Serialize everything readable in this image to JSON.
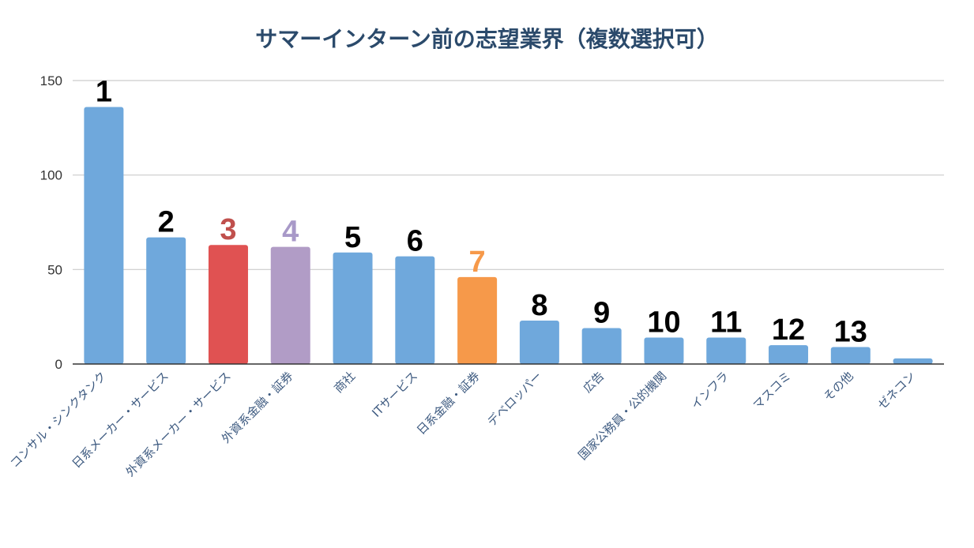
{
  "chart_data": {
    "type": "bar",
    "title": "サマーインターン前の志望業界（複数選択可）",
    "xlabel": "",
    "ylabel": "",
    "ylim": [
      0,
      150
    ],
    "yticks": [
      0,
      50,
      100,
      150
    ],
    "grid": true,
    "categories": [
      "コンサル・シンクタンク",
      "日系メーカー・サービス",
      "外資系メーカー・サービス",
      "外資系金融・証券",
      "商社",
      "ITサービス",
      "日系金融・証券",
      "デベロッパー",
      "広告",
      "国家公務員・公的機関",
      "インフラ",
      "マスコミ",
      "その他",
      "ゼネコン"
    ],
    "values": [
      136,
      67,
      63,
      62,
      59,
      57,
      46,
      23,
      19,
      14,
      14,
      10,
      9,
      3
    ],
    "bar_colors": [
      "#6fa8dc",
      "#6fa8dc",
      "#e05252",
      "#b19cc6",
      "#6fa8dc",
      "#6fa8dc",
      "#f6994a",
      "#6fa8dc",
      "#6fa8dc",
      "#6fa8dc",
      "#6fa8dc",
      "#6fa8dc",
      "#6fa8dc",
      "#6fa8dc"
    ],
    "rank_labels": [
      "1",
      "2",
      "3",
      "4",
      "5",
      "6",
      "7",
      "8",
      "9",
      "10",
      "11",
      "12",
      "13",
      ""
    ],
    "rank_label_colors": [
      "#000000",
      "#000000",
      "#c0504d",
      "#a899c8",
      "#000000",
      "#000000",
      "#f6994a",
      "#000000",
      "#000000",
      "#000000",
      "#000000",
      "#000000",
      "#000000",
      "#000000"
    ],
    "legend": "none"
  }
}
